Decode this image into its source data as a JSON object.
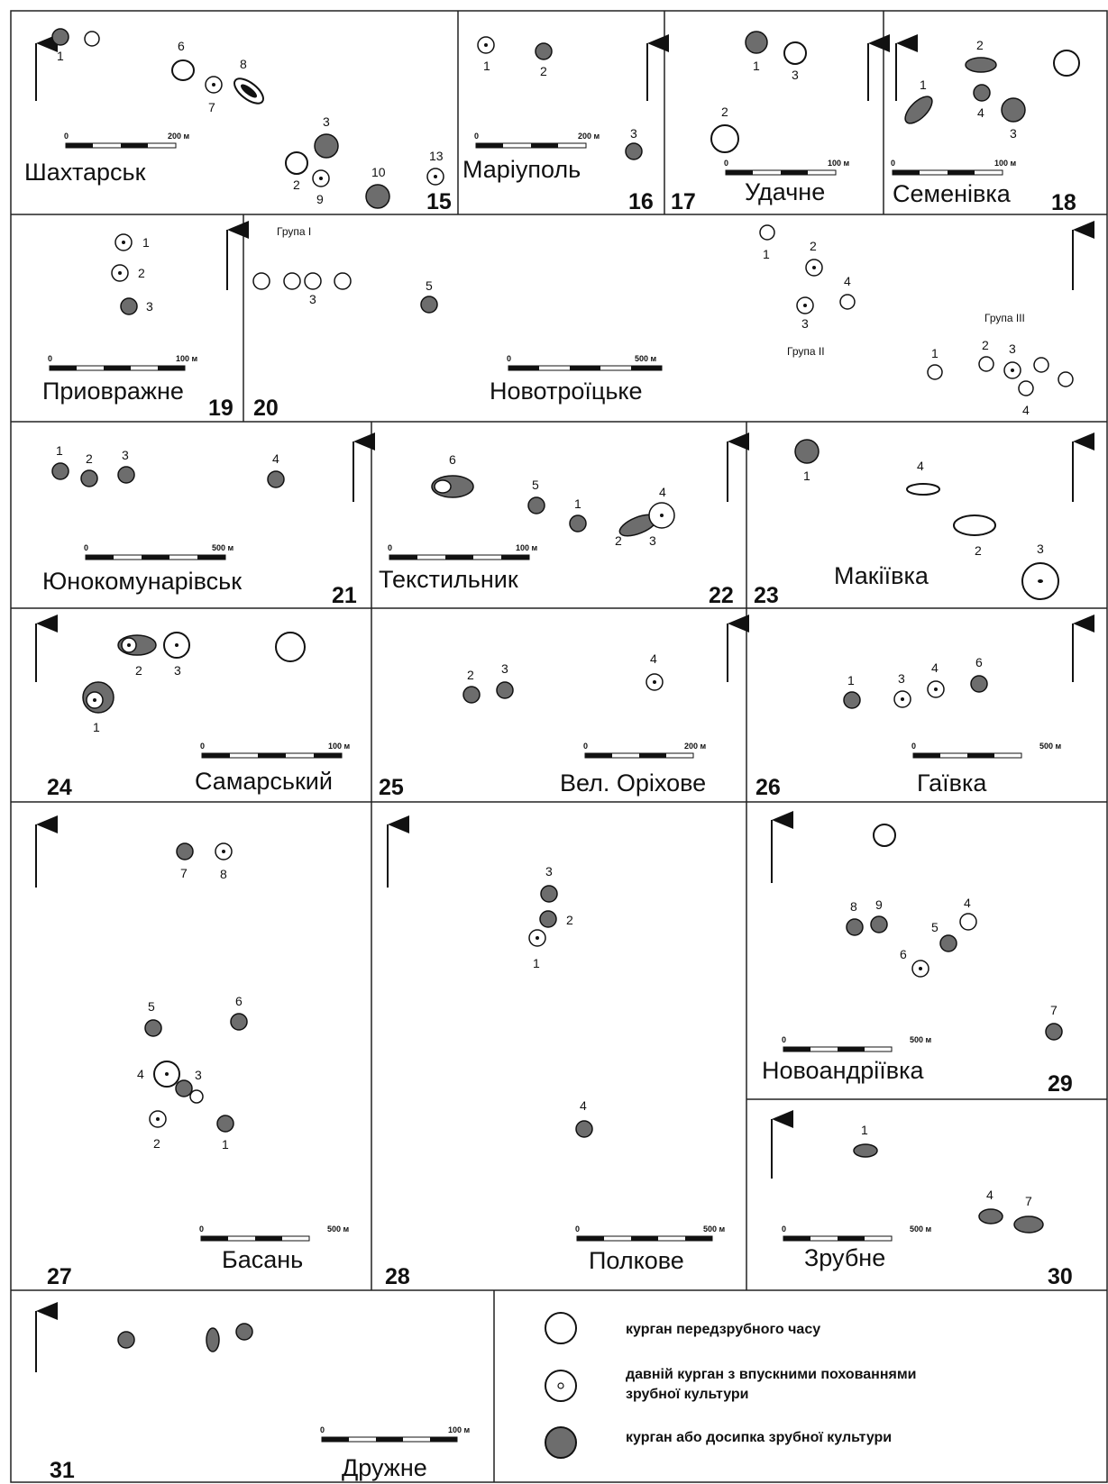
{
  "colors": {
    "fill": "#6d6d6d",
    "stroke": "#111111",
    "background": "#ffffff"
  },
  "legend": {
    "pre_timber": "курган передзрубного часу",
    "with_insertions_1": "давній курган з впускними похованнями",
    "with_insertions_2": "зрубної культури",
    "timber": "курган або досипка зрубної культури"
  },
  "panels": [
    {
      "id": "p15",
      "number": "15",
      "name": "Шахтарськ",
      "scale": {
        "zero": "0",
        "end": "200 м"
      }
    },
    {
      "id": "p16",
      "number": "16",
      "name": "Маріуполь",
      "scale": {
        "zero": "0",
        "end": "200 м"
      }
    },
    {
      "id": "p17",
      "number": "17",
      "name": "Удачне",
      "scale": {
        "zero": "0",
        "end": "100 м"
      }
    },
    {
      "id": "p18",
      "number": "18",
      "name": "Семенівка",
      "scale": {
        "zero": "0",
        "end": "100 м"
      }
    },
    {
      "id": "p19",
      "number": "19",
      "name": "Приовражне",
      "scale": {
        "zero": "0",
        "end": "100 м"
      }
    },
    {
      "id": "p20",
      "number": "20",
      "name": "Новотроїцьке",
      "scale": {
        "zero": "0",
        "end": "500 м"
      },
      "groups": [
        "Група I",
        "Група II",
        "Група III"
      ]
    },
    {
      "id": "p21",
      "number": "21",
      "name": "Юнокомунарівськ",
      "scale": {
        "zero": "0",
        "end": "500 м"
      }
    },
    {
      "id": "p22",
      "number": "22",
      "name": "Текстильник",
      "scale": {
        "zero": "0",
        "end": "100 м"
      }
    },
    {
      "id": "p23",
      "number": "23",
      "name": "Макіївка"
    },
    {
      "id": "p24",
      "number": "24",
      "name": "Самарський",
      "scale": {
        "zero": "0",
        "end": "100 м"
      }
    },
    {
      "id": "p25",
      "number": "25",
      "name": "Вел. Оріхове",
      "scale": {
        "zero": "0",
        "end": "200 м"
      }
    },
    {
      "id": "p26",
      "number": "26",
      "name": "Гаївка",
      "scale": {
        "zero": "0",
        "end": "500 м"
      }
    },
    {
      "id": "p27",
      "number": "27",
      "name": "Басань",
      "scale": {
        "zero": "0",
        "end": "500 м"
      }
    },
    {
      "id": "p28",
      "number": "28",
      "name": "Полкове",
      "scale": {
        "zero": "0",
        "end": "500 м"
      }
    },
    {
      "id": "p29",
      "number": "29",
      "name": "Новоандріївка",
      "scale": {
        "zero": "0",
        "end": "500 м"
      }
    },
    {
      "id": "p30",
      "number": "30",
      "name": "Зрубне",
      "scale": {
        "zero": "0",
        "end": "500 м"
      }
    },
    {
      "id": "p31",
      "number": "31",
      "name": "Дружне",
      "scale": {
        "zero": "0",
        "end": "100 м"
      }
    }
  ],
  "kurgan_labels": {
    "p15": [
      "1",
      "6",
      "7",
      "8",
      "3",
      "2",
      "9",
      "10",
      "13"
    ],
    "p16": [
      "1",
      "2",
      "3"
    ],
    "p17": [
      "1",
      "3",
      "2"
    ],
    "p18": [
      "2",
      "1",
      "4",
      "3"
    ],
    "p19": [
      "1",
      "2",
      "3"
    ],
    "p20": [
      "3",
      "5",
      "1",
      "2",
      "4",
      "3",
      "1",
      "2",
      "3",
      "4"
    ],
    "p21": [
      "1",
      "2",
      "3",
      "4"
    ],
    "p22": [
      "6",
      "5",
      "1",
      "4",
      "2",
      "3"
    ],
    "p23": [
      "1",
      "4",
      "2",
      "3"
    ],
    "p24": [
      "2",
      "3",
      "1"
    ],
    "p25": [
      "2",
      "3",
      "4"
    ],
    "p26": [
      "1",
      "3",
      "4",
      "6"
    ],
    "p27": [
      "7",
      "8",
      "5",
      "6",
      "4",
      "3",
      "2",
      "1"
    ],
    "p28": [
      "3",
      "2",
      "1",
      "4"
    ],
    "p29": [
      "8",
      "9",
      "4",
      "5",
      "6",
      "7"
    ],
    "p30": [
      "1",
      "4",
      "7"
    ]
  }
}
